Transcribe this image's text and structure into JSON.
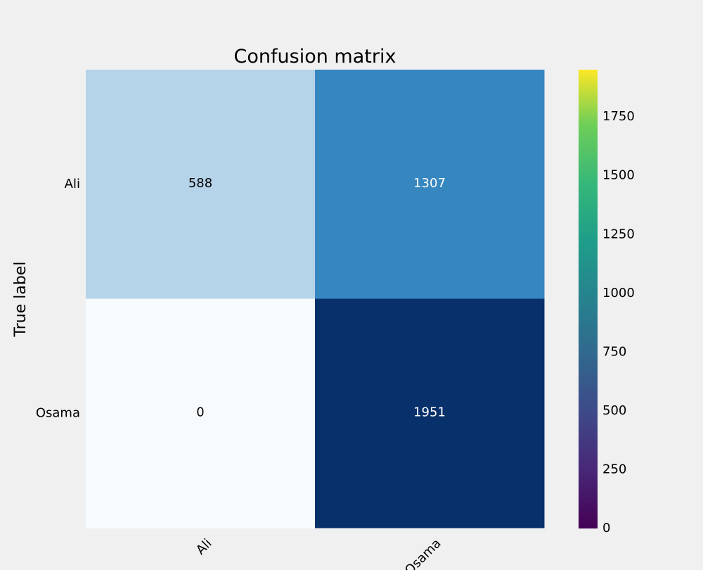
{
  "chart_data": {
    "type": "heatmap",
    "title": "Confusion matrix",
    "ylabel": "True label",
    "xlabel": "",
    "row_labels": [
      "Ali",
      "Osama"
    ],
    "col_labels": [
      "Ali",
      "Osama"
    ],
    "values": [
      [
        588,
        1307
      ],
      [
        0,
        1951
      ]
    ],
    "cell_colormap": "Blues",
    "colorbar": {
      "colormap": "viridis",
      "range": [
        0,
        1951
      ],
      "ticks": [
        0,
        250,
        500,
        750,
        1000,
        1250,
        1500,
        1750
      ]
    },
    "grid": false,
    "colors": {
      "background": "#f0f0f0",
      "light_text": "#ffffff",
      "dark_text": "#000000"
    }
  }
}
